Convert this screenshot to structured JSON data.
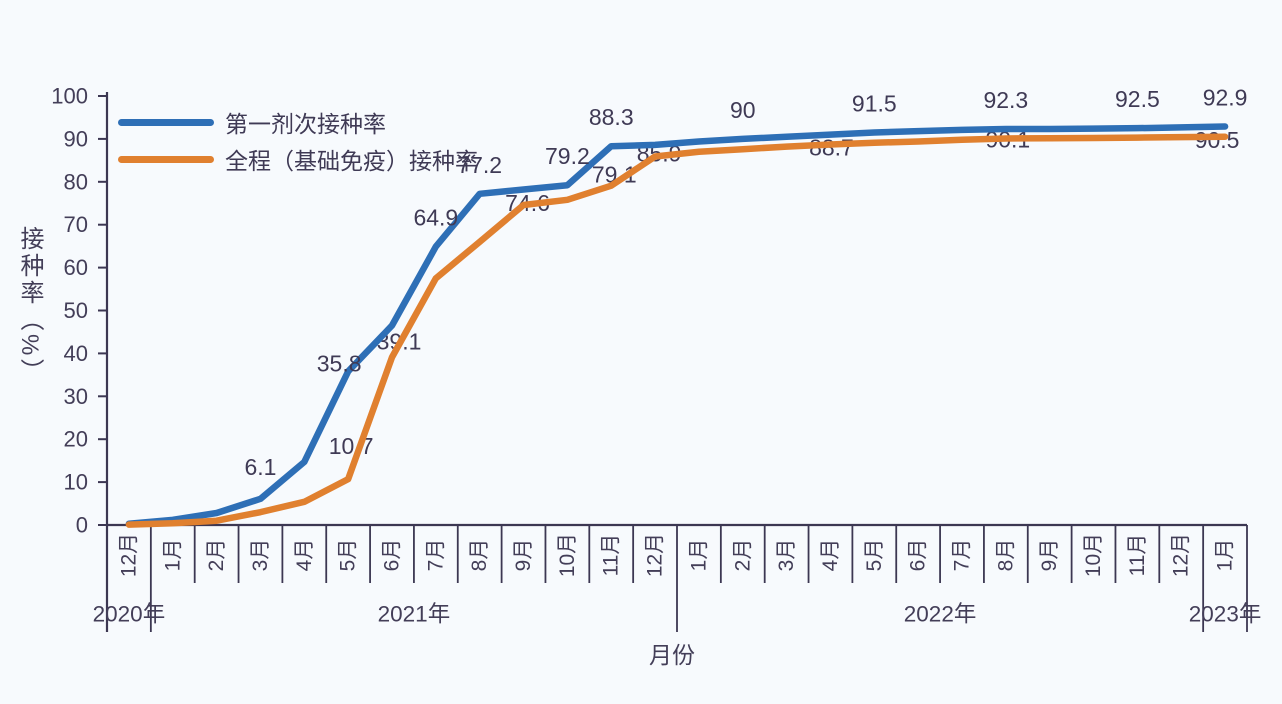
{
  "chart_data": {
    "type": "line",
    "title": "",
    "xlabel": "月份",
    "ylabel": "接种率（%）",
    "ylim": [
      0,
      100
    ],
    "y_ticks": [
      0,
      10,
      20,
      30,
      40,
      50,
      60,
      70,
      80,
      90,
      100
    ],
    "grid": "off",
    "legend_position": "top-left",
    "categories": [
      "12月",
      "1月",
      "2月",
      "3月",
      "4月",
      "5月",
      "6月",
      "7月",
      "8月",
      "9月",
      "10月",
      "11月",
      "12月",
      "1月",
      "2月",
      "3月",
      "4月",
      "5月",
      "6月",
      "7月",
      "8月",
      "9月",
      "10月",
      "11月",
      "12月",
      "1月"
    ],
    "year_groups": [
      {
        "label": "2020年",
        "start_index": 0,
        "month_count": 1
      },
      {
        "label": "2021年",
        "start_index": 1,
        "month_count": 12
      },
      {
        "label": "2022年",
        "start_index": 13,
        "month_count": 12
      },
      {
        "label": "2023年",
        "start_index": 25,
        "month_count": 1
      }
    ],
    "series": [
      {
        "name": "第一剂次接种率",
        "color": "#2e6fb6",
        "values": [
          0.3,
          1.2,
          2.8,
          6.1,
          14.7,
          35.8,
          46.5,
          64.9,
          77.2,
          78.2,
          79.2,
          88.3,
          88.6,
          89.4,
          90,
          90.5,
          91,
          91.5,
          91.8,
          92.1,
          92.3,
          92.3,
          92.4,
          92.5,
          92.7,
          92.9
        ],
        "point_labels": [
          {
            "index": 3,
            "text": "6.1"
          },
          {
            "index": 5,
            "text": "35.8"
          },
          {
            "index": 7,
            "text": "64.9"
          },
          {
            "index": 8,
            "text": "77.2"
          },
          {
            "index": 10,
            "text": "79.2"
          },
          {
            "index": 11,
            "text": "88.3"
          },
          {
            "index": 14,
            "text": "90"
          },
          {
            "index": 17,
            "text": "91.5"
          },
          {
            "index": 20,
            "text": "92.3"
          },
          {
            "index": 23,
            "text": "92.5"
          },
          {
            "index": 25,
            "text": "92.9"
          }
        ]
      },
      {
        "name": "全程（基础免疫）接种率",
        "color": "#e0802f",
        "values": [
          0.1,
          0.4,
          1,
          3,
          5.4,
          10.7,
          39.1,
          57.5,
          66,
          74.6,
          75.8,
          79.1,
          85.9,
          87,
          87.6,
          88.2,
          88.7,
          89.1,
          89.4,
          89.8,
          90.1,
          90.15,
          90.2,
          90.3,
          90.4,
          90.5
        ],
        "point_labels": [
          {
            "index": 5,
            "text": "10.7"
          },
          {
            "index": 6,
            "text": "39.1"
          },
          {
            "index": 9,
            "text": "74.6"
          },
          {
            "index": 11,
            "text": "79.1"
          },
          {
            "index": 12,
            "text": "85.9"
          },
          {
            "index": 16,
            "text": "88.7"
          },
          {
            "index": 20,
            "text": "90.1"
          },
          {
            "index": 25,
            "text": "90.5"
          }
        ]
      }
    ]
  },
  "colors": {
    "background": "#f7fafd",
    "axis": "#3c3752",
    "tick_text": "#433e58",
    "label_text": "#3f3a55"
  }
}
